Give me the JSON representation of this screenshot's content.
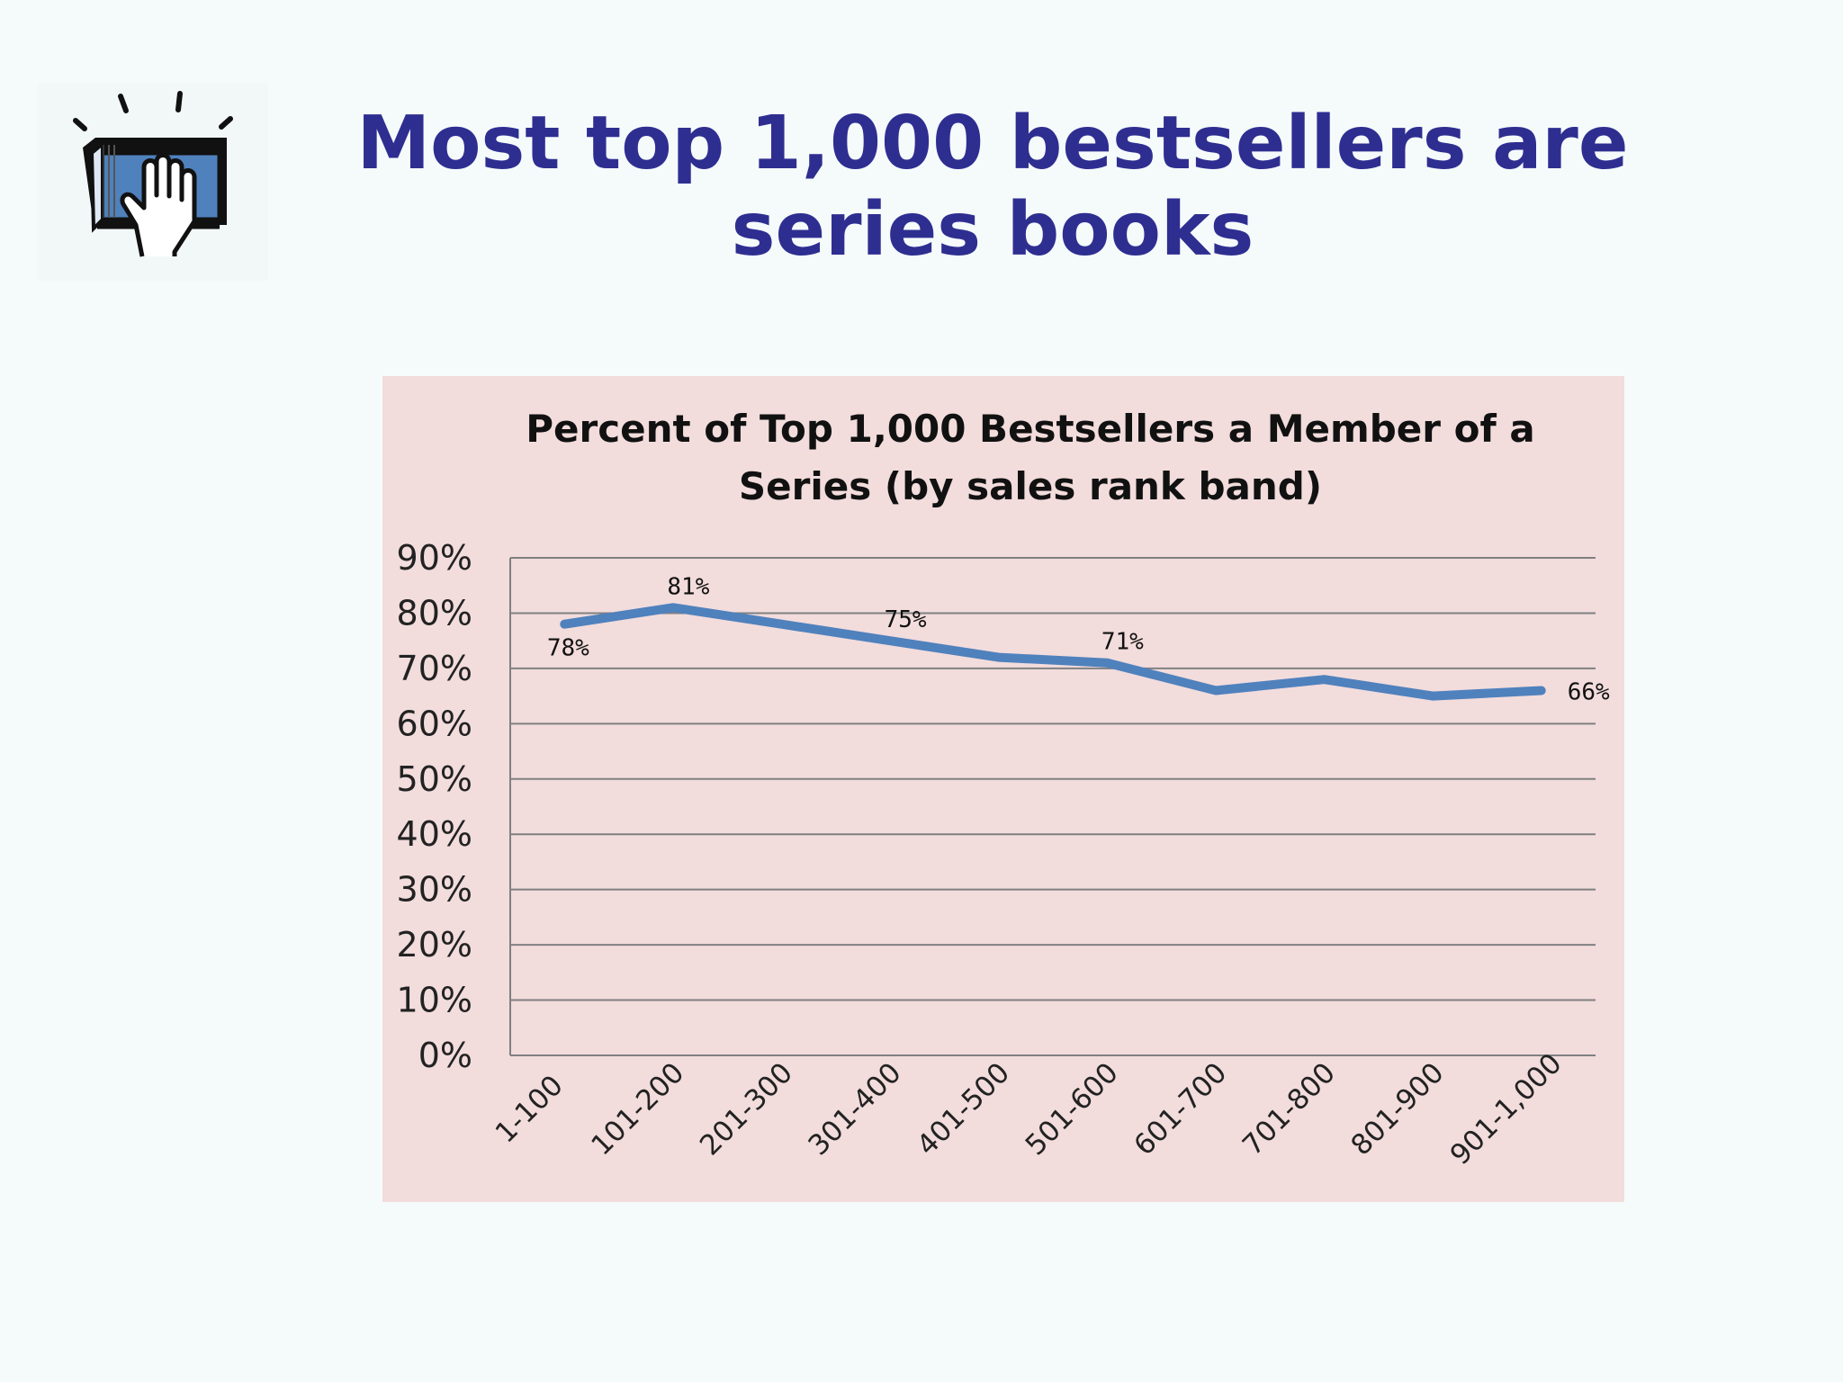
{
  "slide": {
    "title_line1": "Most top 1,000 bestsellers are",
    "title_line2": "series books"
  },
  "logo": {
    "icon": "book-hand-icon"
  },
  "colors": {
    "title": "#2e2e91",
    "chart_background": "#f2dcdc",
    "series_line": "#4f81bd",
    "gridline": "#808080"
  },
  "chart_data": {
    "type": "line",
    "title": "Percent of Top 1,000 Bestsellers a Member of a Series (by sales rank band)",
    "title_lines": [
      "Percent of Top 1,000 Bestsellers a Member of a",
      "Series (by sales rank band)"
    ],
    "categories": [
      "1-100",
      "101-200",
      "201-300",
      "301-400",
      "401-500",
      "501-600",
      "601-700",
      "701-800",
      "801-900",
      "901-1,000"
    ],
    "series": [
      {
        "values": [
          78,
          81,
          78,
          75,
          72,
          71,
          66,
          68,
          65,
          66
        ]
      }
    ],
    "data_labels": [
      {
        "index": 0,
        "text": "78%"
      },
      {
        "index": 1,
        "text": "81%"
      },
      {
        "index": 3,
        "text": "75%"
      },
      {
        "index": 5,
        "text": "71%"
      },
      {
        "index": 9,
        "text": "66%"
      }
    ],
    "y_ticks": [
      "0%",
      "10%",
      "20%",
      "30%",
      "40%",
      "50%",
      "60%",
      "70%",
      "80%",
      "90%"
    ],
    "ylim": [
      0,
      90
    ],
    "grid": true,
    "legend": "none",
    "xlabel": "",
    "ylabel": ""
  }
}
